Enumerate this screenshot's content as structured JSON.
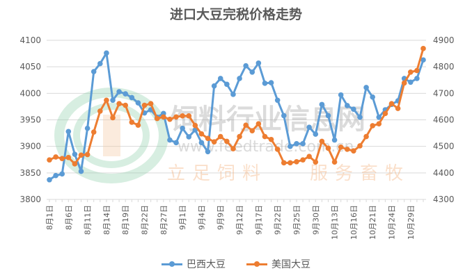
{
  "chart_data": {
    "type": "line",
    "title": "进口大豆完税价格走势",
    "x_tick_labels": [
      "8月1日",
      "8月6日",
      "8月11日",
      "8月14日",
      "8月19日",
      "8月22日",
      "8月27日",
      "9月1日",
      "9月4日",
      "9月9日",
      "9月12日",
      "9月17日",
      "9月22日",
      "9月25日",
      "9月30日",
      "10月13日",
      "10月16日",
      "10月21日",
      "10月24日",
      "10月29日"
    ],
    "tick_label_every_n_points": 3,
    "y_left": {
      "range": [
        3800,
        4100
      ],
      "ticks": [
        "3800",
        "3850",
        "3900",
        "3950",
        "4000",
        "4050",
        "4100"
      ]
    },
    "y_right": {
      "range": [
        4300,
        4900
      ],
      "ticks": [
        "4300",
        "4400",
        "4500",
        "4600",
        "4700",
        "4800",
        "4900"
      ]
    },
    "grid": true,
    "legend_position": "bottom",
    "series": [
      {
        "name": "巴西大豆",
        "axis": "left",
        "color": "#5b9bd5",
        "values": [
          3837,
          3845,
          3848,
          3928,
          3885,
          3853,
          3934,
          4041,
          4056,
          4076,
          3987,
          4003,
          3999,
          3992,
          3982,
          3963,
          3969,
          3955,
          3962,
          3912,
          3907,
          3934,
          3918,
          3931,
          3907,
          3890,
          4014,
          4028,
          4017,
          3998,
          4028,
          4052,
          4040,
          4057,
          4019,
          4020,
          3987,
          3958,
          3900,
          3905,
          3905,
          3936,
          3923,
          3979,
          3958,
          3912,
          3997,
          3977,
          3970,
          3955,
          4011,
          3993,
          3955,
          3969,
          3979,
          3986,
          4028,
          4021,
          4028,
          4063
        ]
      },
      {
        "name": "美国大豆",
        "axis": "right",
        "color": "#ed7d31",
        "values": [
          4449,
          4460,
          4454,
          4458,
          4434,
          4467,
          4469,
          4554,
          4633,
          4674,
          4608,
          4661,
          4655,
          4591,
          4580,
          4655,
          4661,
          4605,
          4611,
          4602,
          4611,
          4615,
          4615,
          4579,
          4547,
          4530,
          4517,
          4537,
          4519,
          4491,
          4537,
          4580,
          4559,
          4585,
          4537,
          4526,
          4489,
          4438,
          4438,
          4442,
          4449,
          4462,
          4441,
          4519,
          4493,
          4441,
          4497,
          4489,
          4483,
          4502,
          4537,
          4578,
          4585,
          4624,
          4661,
          4643,
          4739,
          4780,
          4786,
          4869
        ]
      }
    ]
  },
  "watermark": {
    "name": "饲料行业信息网",
    "url": "www.feedtrade.com.cn",
    "slogan_left": "立足饲料",
    "slogan_right": "服务畜牧"
  }
}
